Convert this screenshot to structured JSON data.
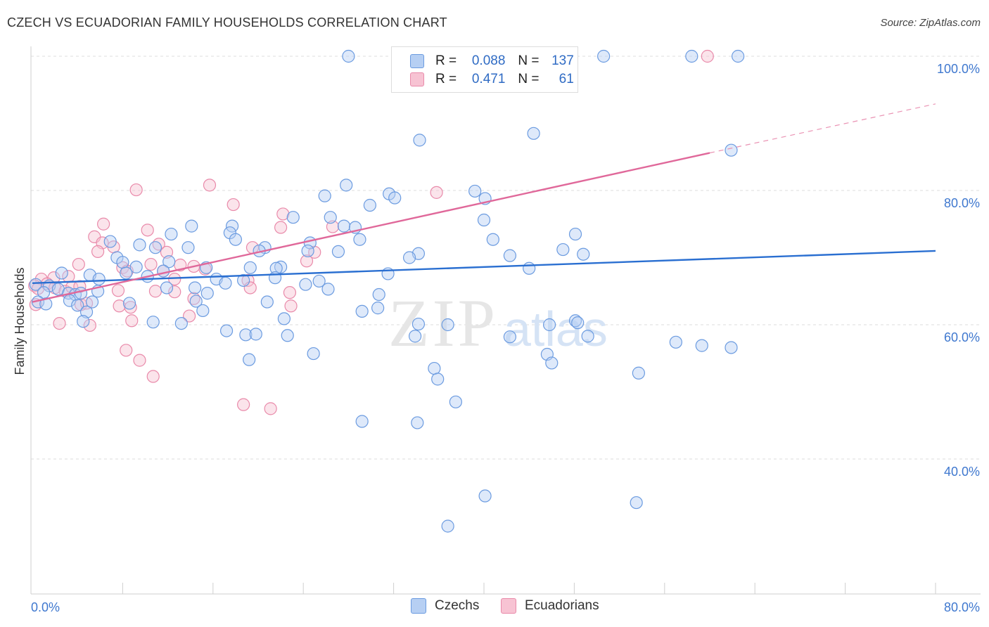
{
  "header": {
    "title": "CZECH VS ECUADORIAN FAMILY HOUSEHOLDS CORRELATION CHART",
    "source": "Source: ZipAtlas.com"
  },
  "watermark": {
    "zip": "ZIP",
    "atlas": "atlas"
  },
  "legend": {
    "rows": [
      {
        "r_label": "R =",
        "r_value": "0.088",
        "n_label": "N =",
        "n_value": "137",
        "color": "#a9c6f0"
      },
      {
        "r_label": "R =",
        "r_value": "0.471",
        "n_label": "N =",
        "n_value": "61",
        "color": "#f5b8cb"
      }
    ]
  },
  "chart_data": {
    "type": "scatter",
    "title": "CZECH VS ECUADORIAN FAMILY HOUSEHOLDS CORRELATION CHART",
    "xlabel": "",
    "ylabel": "Family Households",
    "xlim": [
      0,
      80
    ],
    "ylim": [
      20,
      100
    ],
    "x_tick_labels": [
      "0.0%",
      "80.0%"
    ],
    "y_tick_labels": [
      "100.0%",
      "80.0%",
      "60.0%",
      "40.0%"
    ],
    "y_ticks": [
      100,
      80,
      60,
      40
    ],
    "grid": true,
    "legend_position": "top-center",
    "series": [
      {
        "name": "Czechs",
        "color": "#6b9be0",
        "fill": "#b6cff3",
        "trend": {
          "x": [
            0,
            80
          ],
          "y": [
            66.2,
            71.0
          ]
        },
        "points": [
          [
            28,
            100
          ],
          [
            41.6,
            100
          ],
          [
            50.6,
            100
          ],
          [
            58.4,
            100
          ],
          [
            62.5,
            100
          ],
          [
            34.3,
            87.5
          ],
          [
            44.4,
            88.5
          ],
          [
            61.9,
            86.0
          ],
          [
            27.8,
            80.8
          ],
          [
            25.9,
            79.2
          ],
          [
            39.2,
            79.9
          ],
          [
            31.6,
            79.5
          ],
          [
            32.1,
            78.9
          ],
          [
            29.9,
            77.8
          ],
          [
            40.1,
            78.8
          ],
          [
            14.1,
            74.7
          ],
          [
            17.7,
            74.7
          ],
          [
            23.1,
            76.0
          ],
          [
            26.4,
            76.0
          ],
          [
            27.6,
            74.7
          ],
          [
            28.6,
            74.5
          ],
          [
            40.0,
            75.6
          ],
          [
            12.3,
            73.5
          ],
          [
            17.5,
            73.7
          ],
          [
            18.0,
            72.7
          ],
          [
            24.6,
            72.2
          ],
          [
            29.0,
            72.7
          ],
          [
            40.8,
            72.7
          ],
          [
            48.1,
            73.5
          ],
          [
            6.9,
            72.4
          ],
          [
            9.5,
            71.9
          ],
          [
            10.9,
            71.5
          ],
          [
            13.8,
            71.5
          ],
          [
            20.6,
            71.5
          ],
          [
            20.1,
            71.0
          ],
          [
            24.4,
            71.0
          ],
          [
            27.1,
            70.9
          ],
          [
            34.2,
            70.6
          ],
          [
            33.4,
            70.0
          ],
          [
            42.3,
            70.3
          ],
          [
            47.0,
            71.2
          ],
          [
            48.8,
            70.5
          ],
          [
            7.5,
            70.0
          ],
          [
            8.0,
            69.3
          ],
          [
            9.2,
            68.6
          ],
          [
            12.1,
            69.4
          ],
          [
            15.4,
            68.5
          ],
          [
            19.3,
            68.5
          ],
          [
            22.0,
            68.6
          ],
          [
            21.6,
            68.4
          ],
          [
            44.0,
            68.4
          ],
          [
            0.3,
            66.0
          ],
          [
            1.5,
            65.8
          ],
          [
            2.6,
            67.7
          ],
          [
            5.1,
            67.4
          ],
          [
            5.9,
            66.8
          ],
          [
            8.3,
            67.7
          ],
          [
            10.2,
            67.2
          ],
          [
            11.6,
            68.0
          ],
          [
            16.3,
            66.8
          ],
          [
            17.1,
            66.2
          ],
          [
            18.7,
            66.6
          ],
          [
            21.5,
            67.0
          ],
          [
            25.4,
            66.5
          ],
          [
            31.5,
            67.6
          ],
          [
            1.0,
            64.8
          ],
          [
            2.3,
            65.3
          ],
          [
            3.2,
            64.7
          ],
          [
            3.8,
            64.5
          ],
          [
            4.3,
            64.7
          ],
          [
            5.8,
            65.0
          ],
          [
            11.9,
            65.5
          ],
          [
            14.4,
            65.5
          ],
          [
            15.5,
            64.7
          ],
          [
            24.2,
            66.0
          ],
          [
            26.2,
            65.3
          ],
          [
            30.7,
            64.5
          ],
          [
            0.5,
            63.4
          ],
          [
            1.2,
            63.1
          ],
          [
            3.3,
            63.6
          ],
          [
            4.0,
            62.9
          ],
          [
            5.3,
            63.4
          ],
          [
            8.6,
            63.2
          ],
          [
            14.5,
            63.5
          ],
          [
            20.8,
            63.4
          ],
          [
            15.1,
            62.1
          ],
          [
            29.2,
            62.0
          ],
          [
            30.6,
            62.5
          ],
          [
            4.8,
            61.9
          ],
          [
            4.5,
            60.5
          ],
          [
            10.7,
            60.4
          ],
          [
            13.2,
            60.2
          ],
          [
            22.3,
            60.9
          ],
          [
            34.2,
            60.1
          ],
          [
            36.8,
            60.0
          ],
          [
            45.8,
            60.0
          ],
          [
            48.1,
            60.6
          ],
          [
            48.3,
            60.3
          ],
          [
            17.2,
            59.1
          ],
          [
            18.9,
            58.5
          ],
          [
            19.8,
            58.6
          ],
          [
            22.6,
            58.4
          ],
          [
            33.9,
            58.3
          ],
          [
            42.3,
            58.2
          ],
          [
            49.2,
            58.3
          ],
          [
            57.0,
            57.4
          ],
          [
            59.3,
            56.9
          ],
          [
            61.9,
            56.6
          ],
          [
            24.9,
            55.7
          ],
          [
            45.6,
            55.6
          ],
          [
            19.2,
            54.8
          ],
          [
            46.0,
            54.3
          ],
          [
            35.6,
            53.5
          ],
          [
            35.9,
            51.9
          ],
          [
            53.7,
            52.8
          ],
          [
            37.5,
            48.5
          ],
          [
            29.2,
            45.6
          ],
          [
            34.1,
            45.4
          ],
          [
            40.1,
            34.5
          ],
          [
            53.5,
            33.5
          ],
          [
            36.8,
            30.0
          ]
        ]
      },
      {
        "name": "Ecuadorians",
        "color": "#e98aaa",
        "fill": "#f7c3d3",
        "trend": {
          "x": [
            0,
            60
          ],
          "y": [
            63.4,
            85.6
          ]
        },
        "trend_dashed": {
          "x": [
            60,
            80
          ],
          "y": [
            85.6,
            92.9
          ]
        },
        "points": [
          [
            59.8,
            100
          ],
          [
            9.2,
            80.1
          ],
          [
            15.7,
            80.8
          ],
          [
            17.8,
            77.9
          ],
          [
            22.2,
            76.5
          ],
          [
            22.0,
            74.5
          ],
          [
            26.6,
            74.6
          ],
          [
            35.8,
            79.7
          ],
          [
            6.3,
            75.0
          ],
          [
            10.2,
            74.1
          ],
          [
            5.5,
            73.1
          ],
          [
            6.2,
            72.2
          ],
          [
            11.2,
            72.0
          ],
          [
            5.8,
            70.9
          ],
          [
            7.2,
            71.6
          ],
          [
            11.9,
            70.8
          ],
          [
            19.5,
            71.5
          ],
          [
            25.0,
            70.8
          ],
          [
            4.1,
            69.0
          ],
          [
            10.5,
            69.0
          ],
          [
            13.1,
            68.9
          ],
          [
            14.3,
            68.7
          ],
          [
            15.3,
            68.3
          ],
          [
            24.3,
            69.5
          ],
          [
            11.6,
            68.0
          ],
          [
            0.8,
            66.8
          ],
          [
            1.9,
            67.0
          ],
          [
            3.2,
            67.2
          ],
          [
            8.0,
            68.5
          ],
          [
            8.4,
            68.0
          ],
          [
            12.6,
            66.8
          ],
          [
            19.1,
            66.6
          ],
          [
            0.2,
            65.8
          ],
          [
            0.5,
            65.4
          ],
          [
            1.3,
            66.1
          ],
          [
            2.0,
            65.5
          ],
          [
            2.9,
            65.0
          ],
          [
            3.5,
            65.6
          ],
          [
            4.2,
            65.7
          ],
          [
            7.6,
            65.1
          ],
          [
            10.9,
            65.0
          ],
          [
            12.6,
            64.9
          ],
          [
            22.8,
            64.8
          ],
          [
            0.3,
            63.0
          ],
          [
            4.3,
            63.0
          ],
          [
            4.8,
            63.2
          ],
          [
            7.7,
            62.8
          ],
          [
            8.7,
            62.6
          ],
          [
            14.3,
            63.9
          ],
          [
            22.9,
            62.8
          ],
          [
            2.4,
            60.2
          ],
          [
            5.1,
            59.9
          ],
          [
            8.8,
            60.6
          ],
          [
            13.9,
            61.3
          ],
          [
            8.3,
            56.2
          ],
          [
            9.5,
            54.7
          ],
          [
            10.7,
            52.3
          ],
          [
            18.7,
            48.1
          ],
          [
            21.1,
            47.5
          ],
          [
            19.3,
            65.5
          ]
        ]
      }
    ]
  }
}
